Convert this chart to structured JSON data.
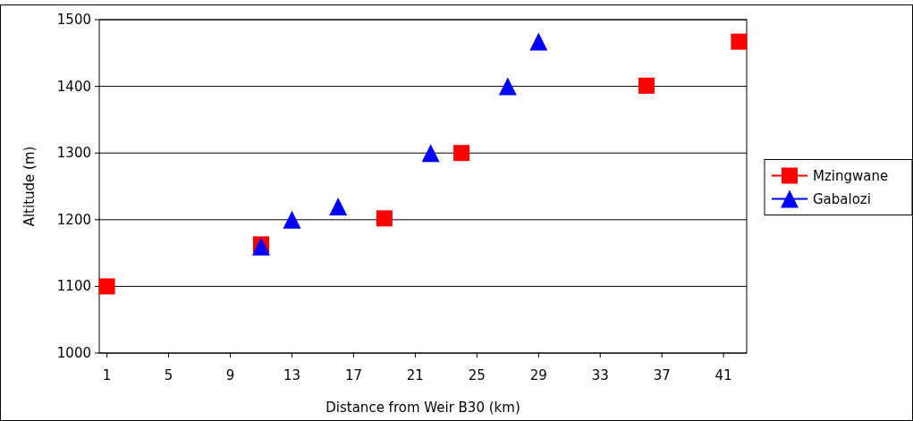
{
  "chart_data": {
    "type": "scatter",
    "xlabel": "Distance from Weir B30 (km)",
    "ylabel": "Altitude (m)",
    "xlim": [
      0.5,
      42.5
    ],
    "xticks": [
      1,
      5,
      9,
      13,
      17,
      21,
      25,
      29,
      33,
      37,
      41
    ],
    "ylim": [
      1000,
      1500
    ],
    "yticks": [
      1000,
      1100,
      1200,
      1300,
      1400,
      1500
    ],
    "grid": "y",
    "legend": "right",
    "series": [
      {
        "name": "Mzingwane",
        "color": "#ff0000",
        "marker": "square",
        "x": [
          1,
          11,
          19,
          24,
          36,
          42
        ],
        "values": [
          1100,
          1163,
          1202,
          1300,
          1401,
          1467
        ]
      },
      {
        "name": "Gabalozi",
        "color": "#0000ff",
        "marker": "triangle",
        "x": [
          11,
          13,
          16,
          22,
          27,
          29
        ],
        "values": [
          1160,
          1200,
          1220,
          1300,
          1400,
          1467
        ]
      }
    ]
  }
}
